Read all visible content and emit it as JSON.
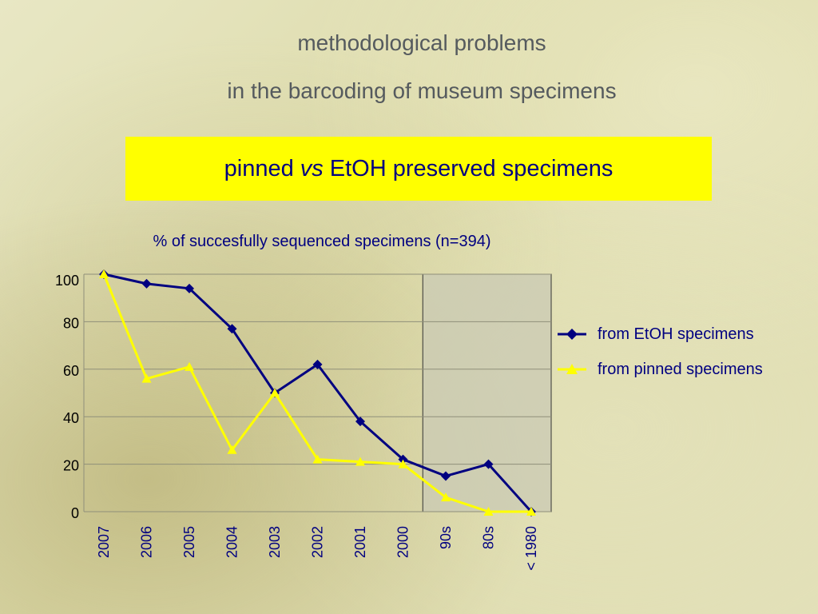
{
  "slide": {
    "title_line1": "methodological problems",
    "title_line2": "in the barcoding of museum specimens",
    "banner_pre": "pinned",
    "banner_vs": "vs",
    "banner_post": "EtOH preserved specimens"
  },
  "colors": {
    "etoh": "#000080",
    "pinned": "#ffff00",
    "shade": "#c9c9b4",
    "banner": "#ffff00",
    "text": "#000080"
  },
  "chart_data": {
    "type": "line",
    "title": "% of succesfully sequenced specimens (n=394)",
    "categories": [
      "2007",
      "2006",
      "2005",
      "2004",
      "2003",
      "2002",
      "2001",
      "2000",
      "90s",
      "80s",
      "< 1980"
    ],
    "ylim": [
      0,
      100
    ],
    "yticks": [
      0,
      20,
      40,
      60,
      80,
      100
    ],
    "grid": true,
    "legend_position": "right",
    "shaded_categories": [
      "90s",
      "80s",
      "< 1980"
    ],
    "series": [
      {
        "name": "from EtOH specimens",
        "marker": "diamond",
        "color": "#000080",
        "values": [
          100,
          96,
          94,
          77,
          50,
          62,
          38,
          22,
          15,
          20,
          0
        ]
      },
      {
        "name": "from pinned specimens",
        "marker": "triangle",
        "color": "#ffff00",
        "values": [
          100,
          56,
          61,
          26,
          50,
          22,
          21,
          20,
          6,
          0,
          0
        ]
      }
    ]
  }
}
